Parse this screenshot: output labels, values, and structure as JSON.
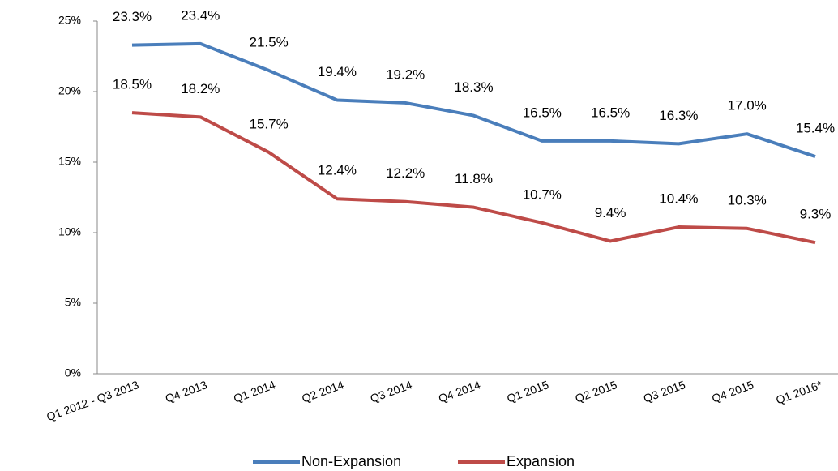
{
  "chart_data": {
    "type": "line",
    "categories": [
      "Q1 2012 - Q3 2013",
      "Q4 2013",
      "Q1 2014",
      "Q2 2014",
      "Q3 2014",
      "Q4 2014",
      "Q1 2015",
      "Q2 2015",
      "Q3 2015",
      "Q4 2015",
      "Q1 2016*"
    ],
    "series": [
      {
        "name": "Non-Expansion",
        "color": "#4a7ebb",
        "values": [
          23.3,
          23.4,
          21.5,
          19.4,
          19.2,
          18.3,
          16.5,
          16.5,
          16.3,
          17.0,
          15.4
        ],
        "value_labels": [
          "23.3%",
          "23.4%",
          "21.5%",
          "19.4%",
          "19.2%",
          "18.3%",
          "16.5%",
          "16.5%",
          "16.3%",
          "17.0%",
          "15.4%"
        ]
      },
      {
        "name": "Expansion",
        "color": "#be4b48",
        "values": [
          18.5,
          18.2,
          15.7,
          12.4,
          12.2,
          11.8,
          10.7,
          9.4,
          10.4,
          10.3,
          9.3
        ],
        "value_labels": [
          "18.5%",
          "18.2%",
          "15.7%",
          "12.4%",
          "12.2%",
          "11.8%",
          "10.7%",
          "9.4%",
          "10.4%",
          "10.3%",
          "9.3%"
        ]
      }
    ],
    "ylim": [
      0,
      25
    ],
    "yticks": [
      {
        "value": 0,
        "label": "0%"
      },
      {
        "value": 5,
        "label": "5%"
      },
      {
        "value": 10,
        "label": "10%"
      },
      {
        "value": 15,
        "label": "15%"
      },
      {
        "value": 20,
        "label": "20%"
      },
      {
        "value": 25,
        "label": "25%"
      }
    ],
    "legend": "bottom"
  }
}
